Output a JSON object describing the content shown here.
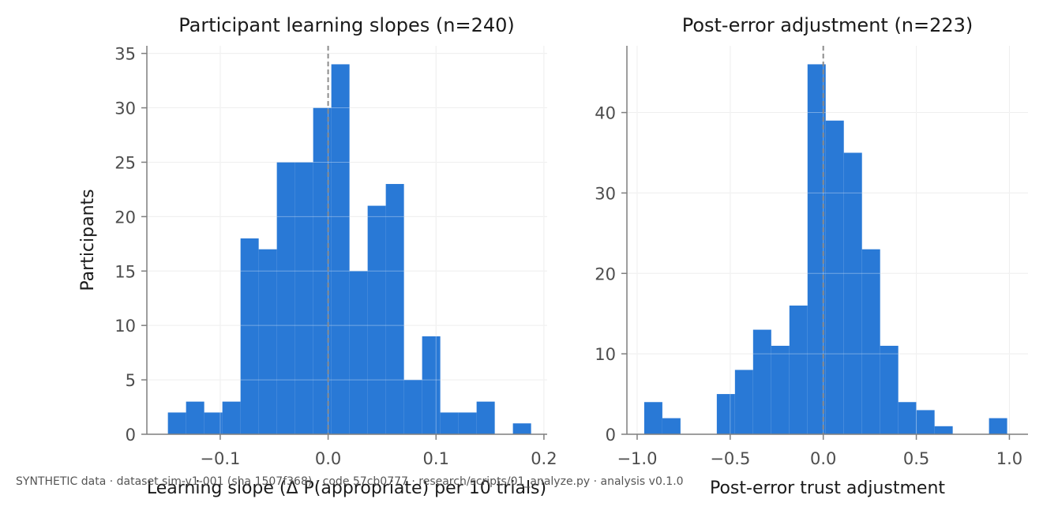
{
  "colors": {
    "bar": "#2979d6",
    "grid": "#e6e6e6",
    "axis": "#7f7f7f",
    "zero_line": "#8c8c8c"
  },
  "footer": "SYNTHETIC data · dataset sim-v1-001 (sha 1507f368) · code 57cb0777 · research/scripts/01_analyze.py · analysis v0.1.0",
  "chart_data": [
    {
      "type": "bar",
      "title": "Participant learning slopes (n=240)",
      "xlabel": "Learning slope (Δ P(appropriate) per 10 trials)",
      "ylabel": "Participants",
      "xlim": [
        -0.168,
        0.203
      ],
      "ylim": [
        0,
        35.7
      ],
      "grid": true,
      "zero_line": true,
      "xticks": [
        -0.1,
        0.0,
        0.1,
        0.2
      ],
      "xtick_labels": [
        "−0.1",
        "0.0",
        "0.1",
        "0.2"
      ],
      "yticks": [
        0,
        5,
        10,
        15,
        20,
        25,
        30,
        35
      ],
      "ytick_labels": [
        "0",
        "5",
        "10",
        "15",
        "20",
        "25",
        "30",
        "35"
      ],
      "bin_start": -0.1485,
      "bin_width": 0.01683,
      "values": [
        2,
        3,
        2,
        3,
        18,
        17,
        25,
        25,
        30,
        34,
        15,
        21,
        23,
        5,
        9,
        2,
        2,
        3,
        0,
        1
      ]
    },
    {
      "type": "bar",
      "title": "Post-error adjustment (n=223)",
      "xlabel": "Post-error trust adjustment",
      "ylabel": "",
      "xlim": [
        -1.055,
        1.1
      ],
      "ylim": [
        0,
        48.3
      ],
      "grid": true,
      "zero_line": true,
      "xticks": [
        -1.0,
        -0.5,
        0.0,
        0.5,
        1.0
      ],
      "xtick_labels": [
        "−1.0",
        "−0.5",
        "0.0",
        "0.5",
        "1.0"
      ],
      "yticks": [
        0,
        10,
        20,
        30,
        40
      ],
      "ytick_labels": [
        "0",
        "10",
        "20",
        "30",
        "40"
      ],
      "bin_start": -0.962,
      "bin_width": 0.0975,
      "values": [
        4,
        2,
        0,
        0,
        5,
        8,
        13,
        11,
        16,
        46,
        39,
        35,
        23,
        11,
        4,
        3,
        1,
        0,
        0,
        2
      ]
    }
  ]
}
